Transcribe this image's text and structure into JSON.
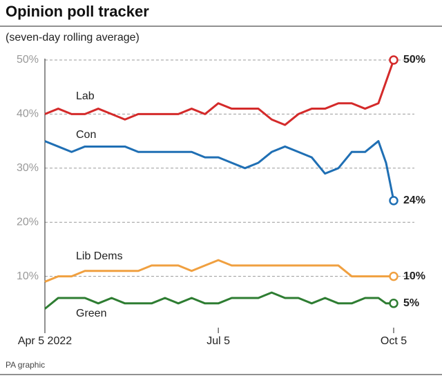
{
  "chart_data": {
    "type": "line",
    "title": "Opinion poll tracker",
    "subtitle": "(seven-day rolling average)",
    "source": "PA graphic",
    "x": [
      "2022-04-05",
      "2022-04-12",
      "2022-04-19",
      "2022-04-26",
      "2022-05-03",
      "2022-05-10",
      "2022-05-17",
      "2022-05-24",
      "2022-05-31",
      "2022-06-07",
      "2022-06-14",
      "2022-06-21",
      "2022-06-28",
      "2022-07-05",
      "2022-07-12",
      "2022-07-19",
      "2022-07-26",
      "2022-08-02",
      "2022-08-09",
      "2022-08-16",
      "2022-08-23",
      "2022-08-30",
      "2022-09-06",
      "2022-09-13",
      "2022-09-20",
      "2022-09-27",
      "2022-10-01",
      "2022-10-05"
    ],
    "xlim": [
      "2022-04-05",
      "2022-10-05"
    ],
    "xticks": [
      {
        "value": "2022-04-05",
        "label": "Apr 5 2022"
      },
      {
        "value": "2022-07-05",
        "label": "Jul 5"
      },
      {
        "value": "2022-10-05",
        "label": "Oct 5"
      }
    ],
    "ylim": [
      0,
      50
    ],
    "yticks": [
      {
        "value": 10,
        "label": "10%"
      },
      {
        "value": 20,
        "label": "20%"
      },
      {
        "value": 30,
        "label": "30%"
      },
      {
        "value": 40,
        "label": "40%"
      },
      {
        "value": 50,
        "label": "50%"
      }
    ],
    "grid": true,
    "series": [
      {
        "name": "Lab",
        "color": "#d42a2a",
        "values": [
          40,
          41,
          40,
          40,
          41,
          40,
          39,
          40,
          40,
          40,
          40,
          41,
          40,
          42,
          41,
          41,
          41,
          39,
          38,
          40,
          41,
          41,
          42,
          42,
          41,
          42,
          46,
          50
        ],
        "value_labels": [
          null,
          null,
          null,
          null,
          null,
          null,
          null,
          null,
          null,
          null,
          null,
          null,
          null,
          null,
          null,
          null,
          null,
          null,
          null,
          null,
          null,
          null,
          null,
          null,
          null,
          null,
          null,
          "50%"
        ]
      },
      {
        "name": "Con",
        "color": "#1f6fb4",
        "values": [
          35,
          34,
          33,
          34,
          34,
          34,
          34,
          33,
          33,
          33,
          33,
          33,
          32,
          32,
          31,
          30,
          31,
          33,
          34,
          33,
          32,
          29,
          30,
          33,
          33,
          35,
          31,
          24
        ],
        "value_labels": [
          null,
          null,
          null,
          null,
          null,
          null,
          null,
          null,
          null,
          null,
          null,
          null,
          null,
          null,
          null,
          null,
          null,
          null,
          null,
          null,
          null,
          null,
          null,
          null,
          null,
          null,
          null,
          "24%"
        ]
      },
      {
        "name": "Lib Dems",
        "color": "#f0a040",
        "values": [
          9,
          10,
          10,
          11,
          11,
          11,
          11,
          11,
          12,
          12,
          12,
          11,
          12,
          13,
          12,
          12,
          12,
          12,
          12,
          12,
          12,
          12,
          12,
          10,
          10,
          10,
          10,
          10
        ],
        "value_labels": [
          null,
          null,
          null,
          null,
          null,
          null,
          null,
          null,
          null,
          null,
          null,
          null,
          null,
          null,
          null,
          null,
          null,
          null,
          null,
          null,
          null,
          null,
          null,
          null,
          null,
          null,
          null,
          "10%"
        ]
      },
      {
        "name": "Green",
        "color": "#2e7d32",
        "values": [
          4,
          6,
          6,
          6,
          5,
          6,
          5,
          5,
          5,
          6,
          5,
          6,
          5,
          5,
          6,
          6,
          6,
          7,
          6,
          6,
          5,
          6,
          5,
          5,
          6,
          6,
          5,
          5
        ],
        "value_labels": [
          null,
          null,
          null,
          null,
          null,
          null,
          null,
          null,
          null,
          null,
          null,
          null,
          null,
          null,
          null,
          null,
          null,
          null,
          null,
          null,
          null,
          null,
          null,
          null,
          null,
          null,
          null,
          "5%"
        ]
      }
    ]
  }
}
